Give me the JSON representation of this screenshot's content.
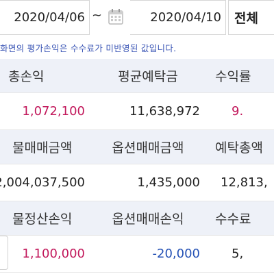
{
  "filter": {
    "start_date": "2020/04/06",
    "separator": "~",
    "end_date": "2020/04/10",
    "range": "전체"
  },
  "notice": "화면의 평가손익은 수수료가 미반영된 값입니다.",
  "rows": [
    {
      "headers": [
        "총손익",
        "평균예탁금",
        "수익률"
      ],
      "values": [
        "1,072,100",
        "11,638,972",
        "9."
      ]
    },
    {
      "headers": [
        "물매매금액",
        "옵션매매금액",
        "예탁총액"
      ],
      "values": [
        "2,004,037,500",
        "1,435,000",
        "12,813,"
      ]
    },
    {
      "headers": [
        "물정산손익",
        "옵션매매손익",
        "수수료"
      ],
      "values": [
        "1,100,000",
        "-20,000",
        "5,"
      ]
    }
  ],
  "colors": {
    "profit": "#c2185b",
    "loss": "#2451b5",
    "header_bg": "#eef1f8"
  }
}
